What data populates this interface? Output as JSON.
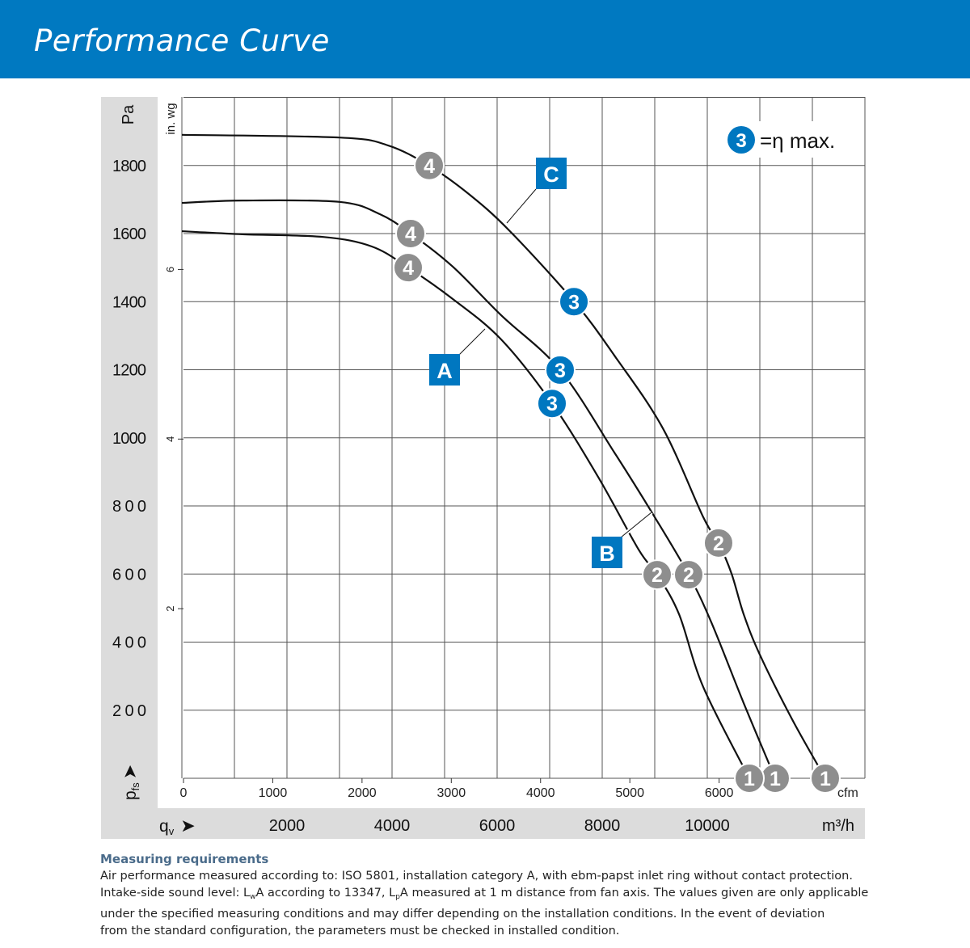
{
  "header": {
    "title": "Performance Curve"
  },
  "chart_data": {
    "type": "line",
    "title": "Performance Curve",
    "xlabel": "qv",
    "x_unit": "m³/h",
    "x_unit_secondary": "cfm",
    "ylabel": "pfs",
    "y_unit": "Pa",
    "y_unit_secondary": "in. wg",
    "xlim": [
      0,
      13000
    ],
    "ylim": [
      0,
      2000
    ],
    "grid": true,
    "x_ticks": [
      2000,
      4000,
      6000,
      8000,
      10000
    ],
    "x_ticks_secondary": [
      0,
      1000,
      2000,
      3000,
      4000,
      5000,
      6000
    ],
    "y_ticks": [
      200,
      400,
      600,
      800,
      1000,
      1200,
      1400,
      1600,
      1800
    ],
    "y_ticks_secondary": [
      2,
      4,
      6
    ],
    "legend": {
      "marker": "3",
      "text": "=η max.",
      "placement": "top-right"
    },
    "series": [
      {
        "name": "C",
        "points": [
          [
            0,
            1890
          ],
          [
            3000,
            1882
          ],
          [
            3923,
            1859
          ],
          [
            4708,
            1799
          ],
          [
            5462,
            1716
          ],
          [
            6231,
            1609
          ],
          [
            7462,
            1401
          ],
          [
            8231,
            1242
          ],
          [
            9154,
            1028
          ],
          [
            9923,
            767
          ],
          [
            10215,
            691
          ],
          [
            10462,
            601
          ],
          [
            10692,
            482
          ],
          [
            11000,
            363
          ],
          [
            11615,
            173
          ],
          [
            12246,
            0
          ]
        ],
        "markers": [
          {
            "label": "4",
            "q": 4708,
            "p": 1800
          },
          {
            "label": "3",
            "q": 7462,
            "p": 1400
          },
          {
            "label": "2",
            "q": 10215,
            "p": 691
          },
          {
            "label": "1",
            "q": 12246,
            "p": 0
          }
        ]
      },
      {
        "name": "B",
        "points": [
          [
            0,
            1690
          ],
          [
            1154,
            1697
          ],
          [
            3000,
            1693
          ],
          [
            3769,
            1657
          ],
          [
            4354,
            1600
          ],
          [
            5154,
            1503
          ],
          [
            6077,
            1360
          ],
          [
            7200,
            1199
          ],
          [
            8231,
            957
          ],
          [
            9000,
            767
          ],
          [
            9646,
            598
          ],
          [
            10077,
            458
          ],
          [
            10692,
            221
          ],
          [
            11292,
            0
          ]
        ],
        "markers": [
          {
            "label": "4",
            "q": 4354,
            "p": 1600
          },
          {
            "label": "3",
            "q": 7200,
            "p": 1199
          },
          {
            "label": "2",
            "q": 9646,
            "p": 598
          },
          {
            "label": "1",
            "q": 11292,
            "p": 0
          }
        ]
      },
      {
        "name": "A",
        "points": [
          [
            0,
            1607
          ],
          [
            1154,
            1598
          ],
          [
            2692,
            1590
          ],
          [
            3615,
            1562
          ],
          [
            4308,
            1500
          ],
          [
            5154,
            1408
          ],
          [
            6077,
            1289
          ],
          [
            7046,
            1101
          ],
          [
            7923,
            885
          ],
          [
            8692,
            672
          ],
          [
            9046,
            598
          ],
          [
            9462,
            482
          ],
          [
            9923,
            268
          ],
          [
            10800,
            0
          ]
        ],
        "markers": [
          {
            "label": "4",
            "q": 4308,
            "p": 1500
          },
          {
            "label": "3",
            "q": 7046,
            "p": 1101
          },
          {
            "label": "2",
            "q": 9046,
            "p": 598
          },
          {
            "label": "1",
            "q": 10800,
            "p": 0
          }
        ]
      }
    ],
    "colors": {
      "optimum": "#0077c0",
      "marker": "#8e8e8e",
      "label_box": "#0077c0",
      "band": "#dcdcdc",
      "grid": "#555555"
    }
  },
  "axis_text": {
    "pa": "Pa",
    "inwg": "in. wg",
    "pfs": "p",
    "pfs_sub": "fs",
    "qv": "q",
    "qv_sub": "v",
    "m3h": "m³/h",
    "cfm": "cfm",
    "arrow": "➤"
  },
  "footer": {
    "title": "Measuring requirements",
    "line1": "Air performance measured according to: ISO 5801, installation category A, with ebm-papst inlet ring without contact protection.",
    "line2a": "Intake-side sound level: L",
    "line2_sub1": "w",
    "line2b": "A according to 13347, L",
    "line2_sub2": "p",
    "line2c": "A measured at 1 m distance from fan axis. The values given are only applicable",
    "line3": "under the specified measuring conditions and may differ depending on the installation conditions. In the event of deviation",
    "line4": "from the standard configuration, the parameters must be checked in installed condition."
  }
}
